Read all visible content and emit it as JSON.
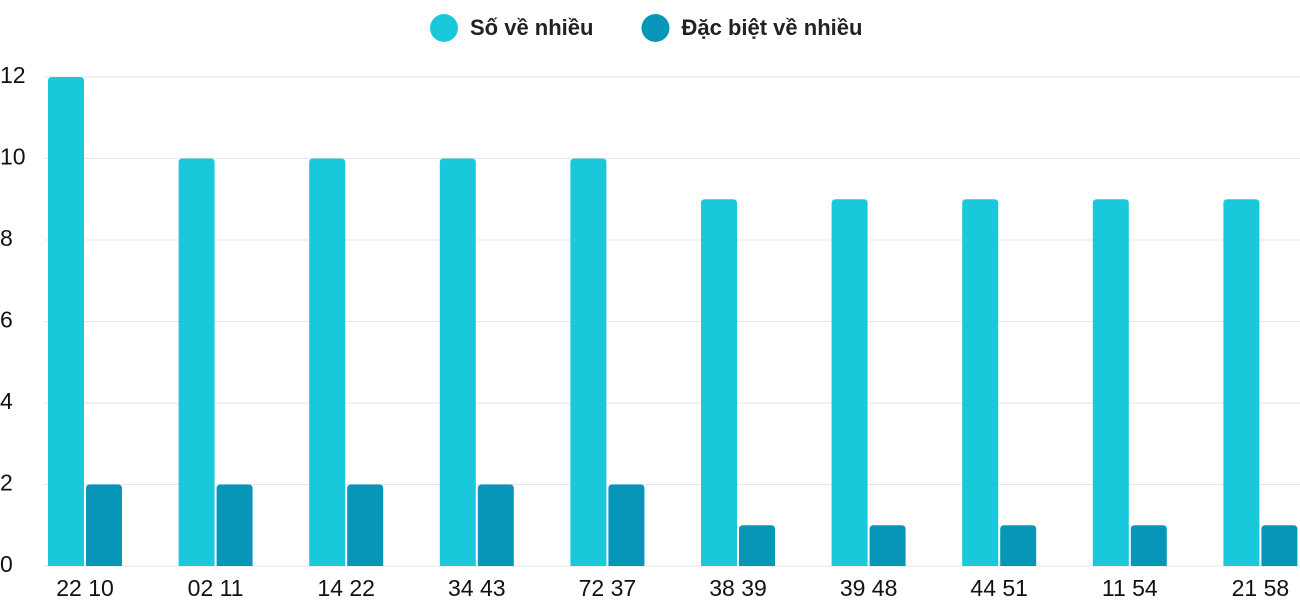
{
  "chart_data": {
    "type": "bar",
    "categories": [
      "22 10",
      "02 11",
      "14 22",
      "34 43",
      "72 37",
      "38 39",
      "39 48",
      "44 51",
      "11 54",
      "21 58"
    ],
    "series": [
      {
        "name": "Số về nhiều",
        "color": "#1ac8db",
        "values": [
          12,
          10,
          10,
          10,
          10,
          9,
          9,
          9,
          9,
          9
        ]
      },
      {
        "name": "Đặc biệt về nhiều",
        "color": "#0796b8",
        "values": [
          2,
          2,
          2,
          2,
          2,
          1,
          1,
          1,
          1,
          1
        ]
      }
    ],
    "ylim": [
      0,
      12
    ],
    "yticks": [
      0,
      2,
      4,
      6,
      8,
      10,
      12
    ],
    "grid": true,
    "legend": "top"
  }
}
